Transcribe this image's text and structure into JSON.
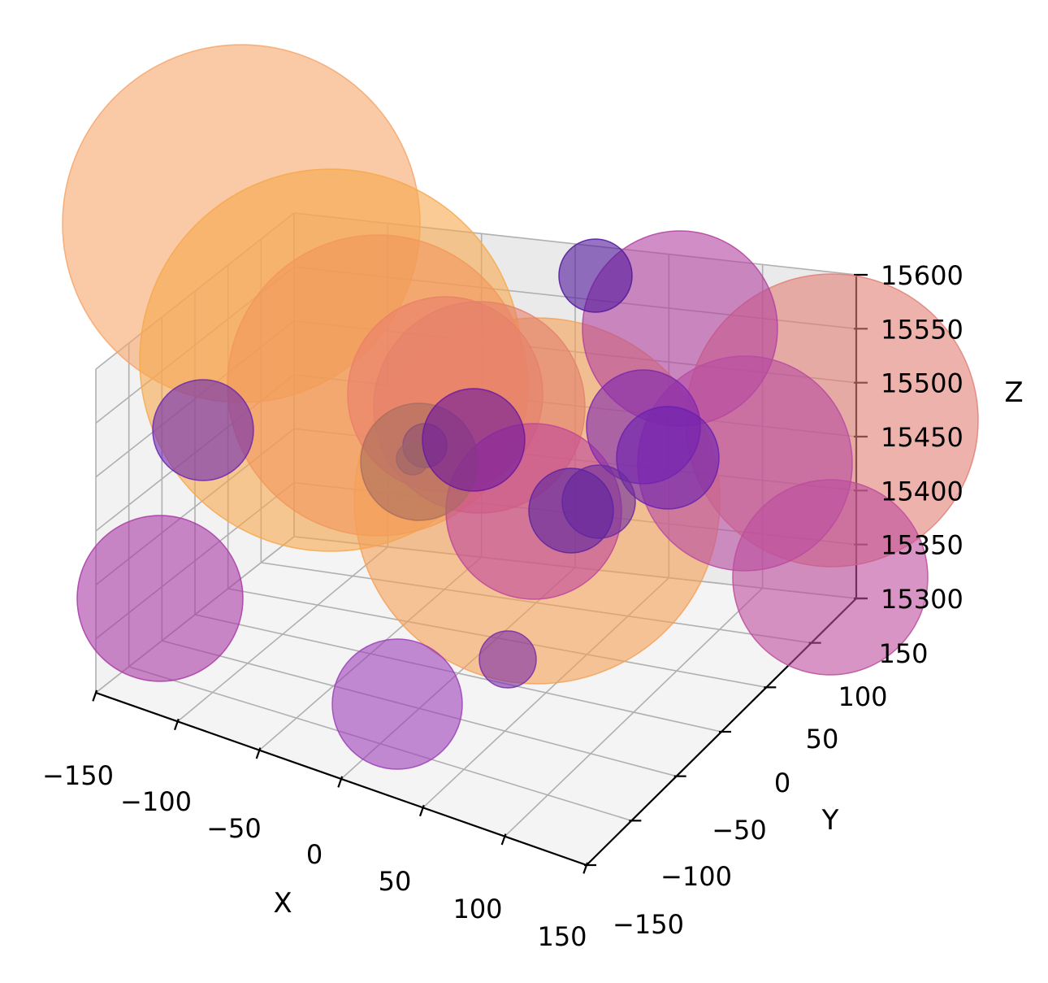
{
  "chart_data": {
    "type": "scatter",
    "subtype": "3d-bubble",
    "title": "",
    "xlabel": "X",
    "ylabel": "Y",
    "zlabel": "Z",
    "xlim": [
      -150,
      150
    ],
    "ylim": [
      -150,
      150
    ],
    "zlim": [
      15300,
      15600
    ],
    "x_ticks": [
      "−150",
      "−100",
      "−50",
      "0",
      "50",
      "100",
      "150"
    ],
    "y_ticks": [
      "−150",
      "−100",
      "−50",
      "0",
      "50",
      "100",
      "150"
    ],
    "z_ticks": [
      "15300",
      "15350",
      "15400",
      "15450",
      "15500",
      "15550",
      "15600"
    ],
    "grid": true,
    "colormap": "plasma",
    "points": [
      {
        "color": "#f6a56a",
        "opacity": 0.6,
        "r": 220
      },
      {
        "color": "#f7a84c",
        "opacity": 0.6,
        "r": 235
      },
      {
        "color": "#f2965a",
        "opacity": 0.6,
        "r": 185
      },
      {
        "color": "#f5a057",
        "opacity": 0.6,
        "r": 225
      },
      {
        "color": "#ea7f6a",
        "opacity": 0.6,
        "r": 120
      },
      {
        "color": "#e5816c",
        "opacity": 0.6,
        "r": 130
      },
      {
        "color": "#e27f74",
        "opacity": 0.6,
        "r": 180
      },
      {
        "color": "#b3419f",
        "opacity": 0.6,
        "r": 120
      },
      {
        "color": "#c0459a",
        "opacity": 0.6,
        "r": 108
      },
      {
        "color": "#b84ba2",
        "opacity": 0.6,
        "r": 132
      },
      {
        "color": "#bd4c9c",
        "opacity": 0.6,
        "r": 120
      },
      {
        "color": "#a93aa6",
        "opacity": 0.6,
        "r": 102
      },
      {
        "color": "#7e26b0",
        "opacity": 0.6,
        "r": 70
      },
      {
        "color": "#6a1fb0",
        "opacity": 0.6,
        "r": 63
      },
      {
        "color": "#52169c",
        "opacity": 0.6,
        "r": 45
      },
      {
        "color": "#7a2aa8",
        "opacity": 0.6,
        "r": 35
      },
      {
        "color": "#652895",
        "opacity": 0.6,
        "r": 27
      },
      {
        "color": "#8a5a78",
        "opacity": 0.6,
        "r": 20
      },
      {
        "color": "#6b26b2",
        "opacity": 0.6,
        "r": 62
      },
      {
        "color": "#a96d60",
        "opacity": 0.6,
        "r": 72
      },
      {
        "color": "#9c40b8",
        "opacity": 0.6,
        "r": 80
      },
      {
        "color": "#6d16a0",
        "opacity": 0.6,
        "r": 63
      },
      {
        "color": "#6b2a9e",
        "opacity": 0.6,
        "r": 45
      },
      {
        "color": "#5c239f",
        "opacity": 0.6,
        "r": 52
      },
      {
        "color": "#3c0d70",
        "opacity": 0.6,
        "r": 28
      },
      {
        "color": "#6a22a6",
        "opacity": 0.6,
        "r": 44
      },
      {
        "color": "#3c0f78",
        "opacity": 0.6,
        "r": 40
      },
      {
        "color": "#9150c4",
        "opacity": 0.6,
        "r": 44
      }
    ]
  }
}
